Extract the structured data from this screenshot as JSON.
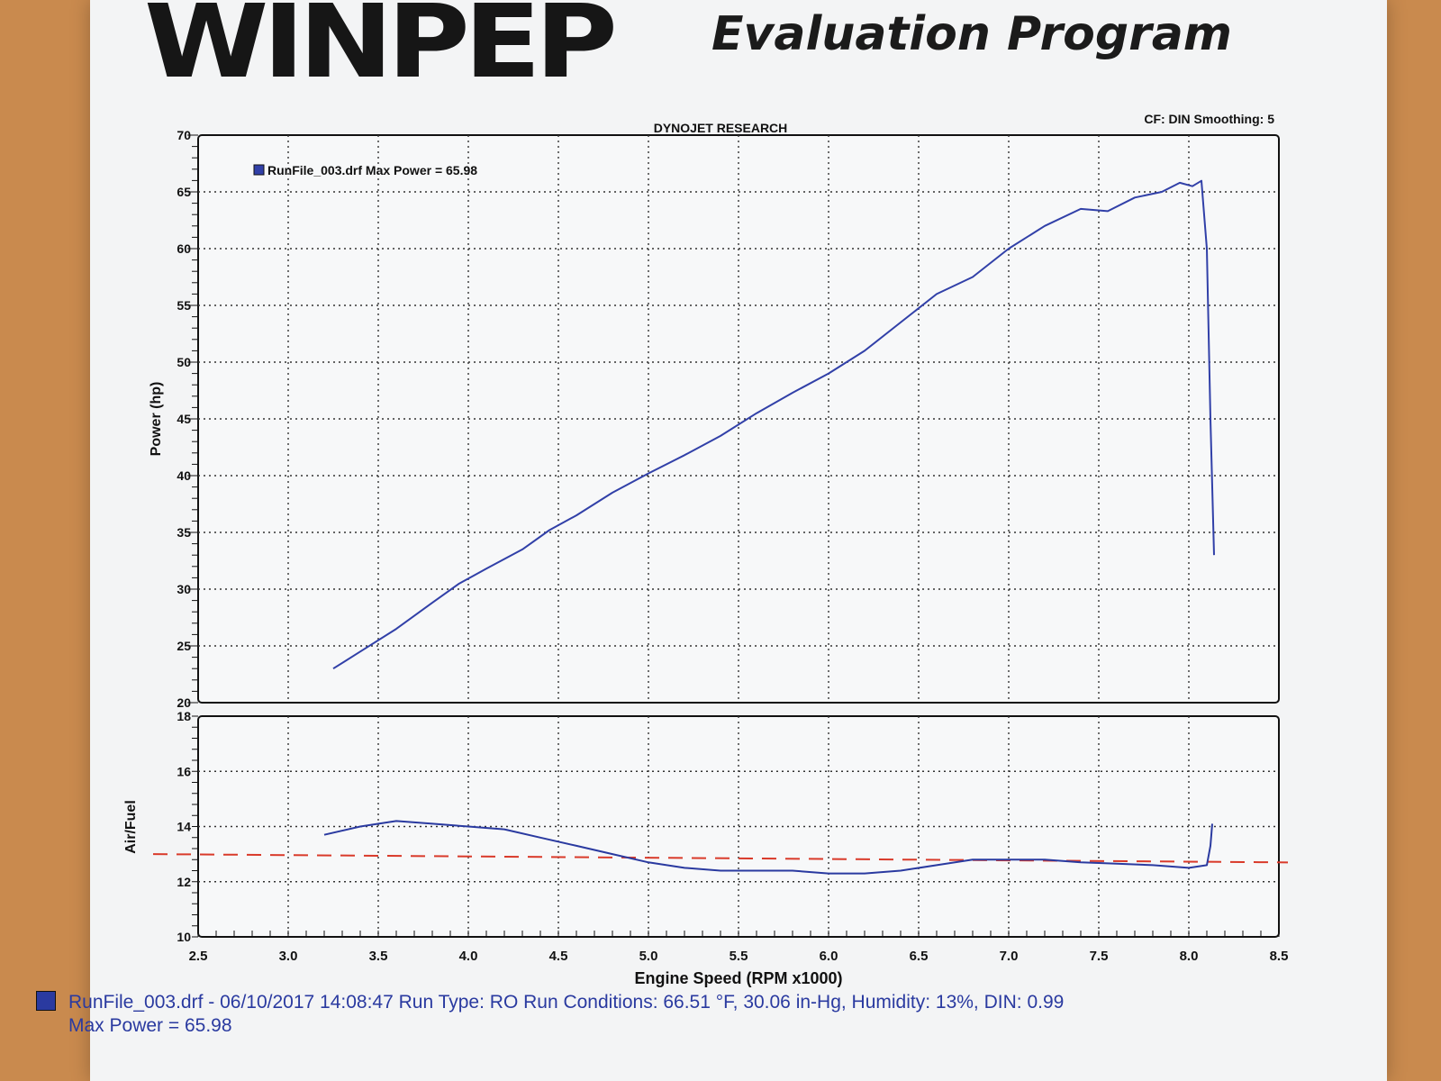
{
  "header": {
    "logo_text": "WINPEP",
    "program_title": "Evaluation Program"
  },
  "colors": {
    "power_line": "#3140a8",
    "afr_line": "#2a3aa0",
    "target_line": "#d93a2a",
    "grid": "#333333"
  },
  "chart_data": [
    {
      "type": "line",
      "title": "DYNOJET RESEARCH",
      "top_right_label": "CF: DIN  Smoothing: 5",
      "ylabel": "Power (hp)",
      "xlim": [
        2.5,
        8.5
      ],
      "ylim": [
        20,
        70
      ],
      "yticks": [
        20,
        25,
        30,
        35,
        40,
        45,
        50,
        55,
        60,
        65,
        70
      ],
      "grid": true,
      "legend": {
        "placement": "top-left",
        "entry": "RunFile_003.drf Max Power = 65.98"
      },
      "series": [
        {
          "name": "RunFile_003.drf Max Power = 65.98",
          "x": [
            3.25,
            3.4,
            3.6,
            3.8,
            3.95,
            4.1,
            4.3,
            4.45,
            4.6,
            4.8,
            5.0,
            5.2,
            5.4,
            5.6,
            5.8,
            6.0,
            6.2,
            6.4,
            6.6,
            6.8,
            7.0,
            7.2,
            7.4,
            7.55,
            7.7,
            7.85,
            7.95,
            8.02,
            8.07,
            8.1,
            8.12,
            8.14
          ],
          "y": [
            23,
            24.5,
            26.5,
            28.8,
            30.5,
            31.8,
            33.5,
            35.2,
            36.5,
            38.5,
            40.2,
            41.8,
            43.5,
            45.5,
            47.3,
            49.0,
            51.0,
            53.5,
            56.0,
            57.5,
            60.0,
            62.0,
            63.5,
            63.3,
            64.5,
            65.0,
            65.8,
            65.5,
            65.98,
            60.0,
            45.0,
            33.0
          ]
        }
      ]
    },
    {
      "type": "line",
      "title": "",
      "xlabel": "Engine Speed (RPM x1000)",
      "ylabel": "Air/Fuel",
      "xlim": [
        2.5,
        8.5
      ],
      "ylim": [
        10,
        18
      ],
      "yticks": [
        10,
        12,
        14,
        16,
        18
      ],
      "xticks": [
        2.5,
        3.0,
        3.5,
        4.0,
        4.5,
        5.0,
        5.5,
        6.0,
        6.5,
        7.0,
        7.5,
        8.0,
        8.5
      ],
      "xtick_labels": [
        "2.5",
        "3.0",
        "3.5",
        "4.0",
        "4.5",
        "5.0",
        "5.5",
        "6.0",
        "6.5",
        "7.0",
        "7.5",
        "8.0",
        "8.5"
      ],
      "grid": true,
      "reference_line": {
        "y_start": 13.0,
        "y_end": 12.7,
        "style": "dashed"
      },
      "series": [
        {
          "name": "",
          "x": [
            3.2,
            3.4,
            3.6,
            3.8,
            4.0,
            4.2,
            4.4,
            4.6,
            4.8,
            5.0,
            5.2,
            5.4,
            5.6,
            5.8,
            6.0,
            6.2,
            6.4,
            6.6,
            6.8,
            7.0,
            7.2,
            7.4,
            7.6,
            7.8,
            8.0,
            8.1,
            8.12,
            8.13
          ],
          "y": [
            13.7,
            14.0,
            14.2,
            14.1,
            14.0,
            13.9,
            13.6,
            13.3,
            13.0,
            12.7,
            12.5,
            12.4,
            12.4,
            12.4,
            12.3,
            12.3,
            12.4,
            12.6,
            12.8,
            12.8,
            12.8,
            12.7,
            12.65,
            12.6,
            12.5,
            12.6,
            13.3,
            14.1
          ]
        }
      ]
    }
  ],
  "footer": {
    "line1": "RunFile_003.drf - 06/10/2017 14:08:47  Run Type: RO  Run Conditions: 66.51 °F, 30.06 in-Hg,  Humidity:  13%, DIN: 0.99",
    "line2": "Max Power = 65.98"
  }
}
